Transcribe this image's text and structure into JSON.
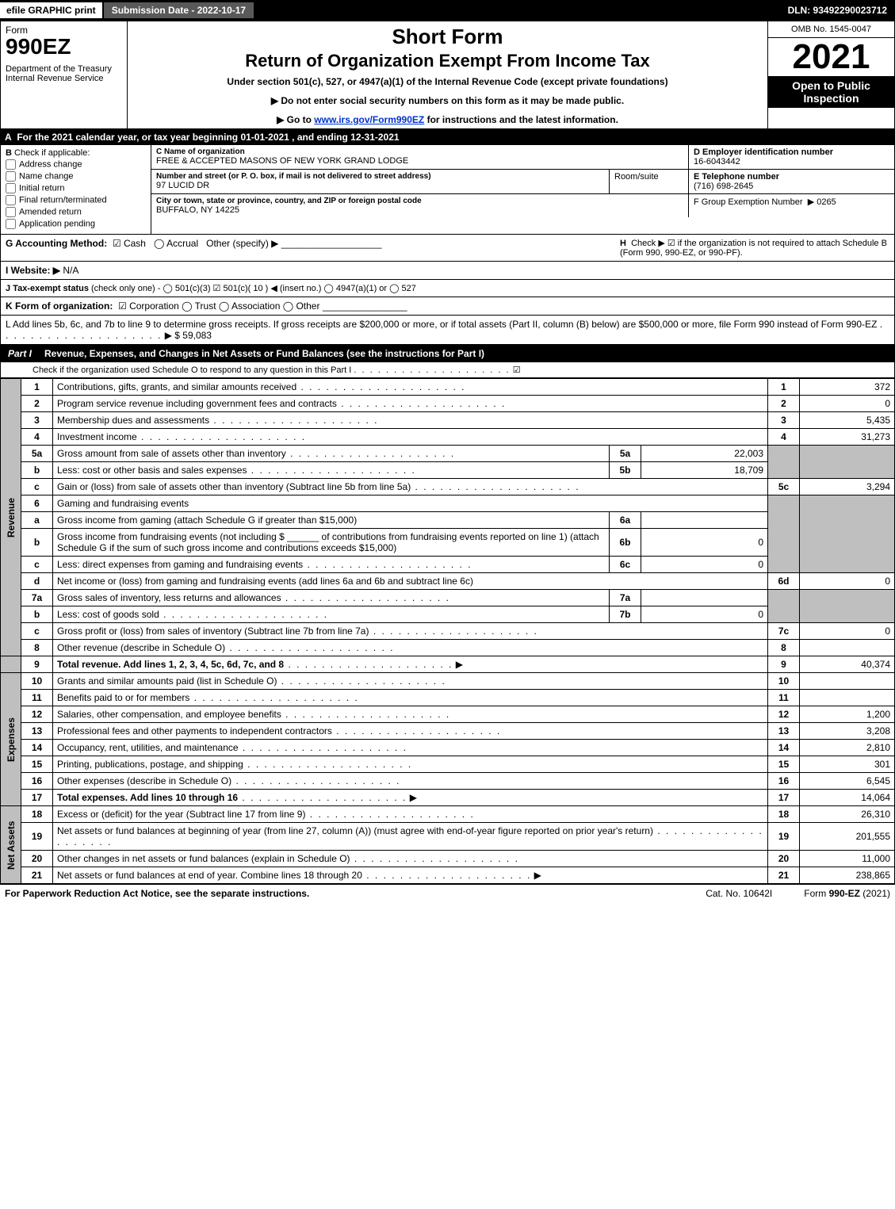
{
  "topbar": {
    "efile": "efile GRAPHIC print",
    "submission": "Submission Date - 2022-10-17",
    "dln": "DLN: 93492290023712"
  },
  "header": {
    "form_word": "Form",
    "form_no": "990EZ",
    "dept": "Department of the Treasury\nInternal Revenue Service",
    "short_form": "Short Form",
    "return_title": "Return of Organization Exempt From Income Tax",
    "under": "Under section 501(c), 527, or 4947(a)(1) of the Internal Revenue Code (except private foundations)",
    "bullet1": "▶ Do not enter social security numbers on this form as it may be made public.",
    "bullet2_pre": "▶ Go to ",
    "bullet2_link": "www.irs.gov/Form990EZ",
    "bullet2_post": " for instructions and the latest information.",
    "omb": "OMB No. 1545-0047",
    "year": "2021",
    "open": "Open to Public Inspection"
  },
  "rowA": {
    "letter": "A",
    "text": "For the 2021 calendar year, or tax year beginning 01-01-2021 , and ending 12-31-2021"
  },
  "B": {
    "title": "Check if applicable:",
    "opts": [
      "Address change",
      "Name change",
      "Initial return",
      "Final return/terminated",
      "Amended return",
      "Application pending"
    ]
  },
  "C": {
    "name_lbl": "C Name of organization",
    "name": "FREE & ACCEPTED MASONS OF NEW YORK GRAND LODGE",
    "addr_lbl": "Number and street (or P. O. box, if mail is not delivered to street address)",
    "addr": "97 LUCID DR",
    "room_lbl": "Room/suite",
    "city_lbl": "City or town, state or province, country, and ZIP or foreign postal code",
    "city": "BUFFALO, NY  14225"
  },
  "D": {
    "lbl": "D Employer identification number",
    "val": "16-6043442"
  },
  "E": {
    "lbl": "E Telephone number",
    "val": "(716) 698-2645"
  },
  "F": {
    "lbl": "F Group Exemption Number",
    "val": "▶ 0265"
  },
  "G": {
    "lbl": "G Accounting Method:",
    "cash": "Cash",
    "accrual": "Accrual",
    "other": "Other (specify) ▶"
  },
  "H": {
    "text": "Check ▶ ☑ if the organization is not required to attach Schedule B (Form 990, 990-EZ, or 990-PF).",
    "letter": "H"
  },
  "I": {
    "lbl": "I Website: ▶",
    "val": "N/A"
  },
  "J": {
    "lbl": "J Tax-exempt status",
    "text": "(check only one) - ◯ 501(c)(3) ☑ 501(c)( 10 ) ◀ (insert no.) ◯ 4947(a)(1) or ◯ 527"
  },
  "K": {
    "lbl": "K Form of organization:",
    "text": "☑ Corporation  ◯ Trust  ◯ Association  ◯ Other"
  },
  "L": {
    "text": "L Add lines 5b, 6c, and 7b to line 9 to determine gross receipts. If gross receipts are $200,000 or more, or if total assets (Part II, column (B) below) are $500,000 or more, file Form 990 instead of Form 990-EZ",
    "amt": "▶ $ 59,083"
  },
  "part1": {
    "label": "Part I",
    "title": "Revenue, Expenses, and Changes in Net Assets or Fund Balances (see the instructions for Part I)",
    "sub": "Check if the organization used Schedule O to respond to any question in this Part I",
    "check": "☑"
  },
  "side": {
    "rev": "Revenue",
    "exp": "Expenses",
    "na": "Net Assets"
  },
  "lines": {
    "l1": {
      "n": "1",
      "t": "Contributions, gifts, grants, and similar amounts received",
      "a": "372"
    },
    "l2": {
      "n": "2",
      "t": "Program service revenue including government fees and contracts",
      "a": "0"
    },
    "l3": {
      "n": "3",
      "t": "Membership dues and assessments",
      "a": "5,435"
    },
    "l4": {
      "n": "4",
      "t": "Investment income",
      "a": "31,273"
    },
    "l5a": {
      "n": "5a",
      "t": "Gross amount from sale of assets other than inventory",
      "il": "5a",
      "ia": "22,003"
    },
    "l5b": {
      "n": "b",
      "t": "Less: cost or other basis and sales expenses",
      "il": "5b",
      "ia": "18,709"
    },
    "l5c": {
      "n": "c",
      "t": "Gain or (loss) from sale of assets other than inventory (Subtract line 5b from line 5a)",
      "rl": "5c",
      "a": "3,294"
    },
    "l6": {
      "n": "6",
      "t": "Gaming and fundraising events"
    },
    "l6a": {
      "n": "a",
      "t": "Gross income from gaming (attach Schedule G if greater than $15,000)",
      "il": "6a",
      "ia": ""
    },
    "l6b": {
      "n": "b",
      "t1": "Gross income from fundraising events (not including $",
      "t2": "of contributions from fundraising events reported on line 1) (attach Schedule G if the sum of such gross income and contributions exceeds $15,000)",
      "il": "6b",
      "ia": "0"
    },
    "l6c": {
      "n": "c",
      "t": "Less: direct expenses from gaming and fundraising events",
      "il": "6c",
      "ia": "0"
    },
    "l6d": {
      "n": "d",
      "t": "Net income or (loss) from gaming and fundraising events (add lines 6a and 6b and subtract line 6c)",
      "rl": "6d",
      "a": "0"
    },
    "l7a": {
      "n": "7a",
      "t": "Gross sales of inventory, less returns and allowances",
      "il": "7a",
      "ia": ""
    },
    "l7b": {
      "n": "b",
      "t": "Less: cost of goods sold",
      "il": "7b",
      "ia": "0"
    },
    "l7c": {
      "n": "c",
      "t": "Gross profit or (loss) from sales of inventory (Subtract line 7b from line 7a)",
      "rl": "7c",
      "a": "0"
    },
    "l8": {
      "n": "8",
      "t": "Other revenue (describe in Schedule O)",
      "rl": "8",
      "a": ""
    },
    "l9": {
      "n": "9",
      "t": "Total revenue. Add lines 1, 2, 3, 4, 5c, 6d, 7c, and 8",
      "rl": "9",
      "a": "40,374"
    },
    "l10": {
      "n": "10",
      "t": "Grants and similar amounts paid (list in Schedule O)",
      "rl": "10",
      "a": ""
    },
    "l11": {
      "n": "11",
      "t": "Benefits paid to or for members",
      "rl": "11",
      "a": ""
    },
    "l12": {
      "n": "12",
      "t": "Salaries, other compensation, and employee benefits",
      "rl": "12",
      "a": "1,200"
    },
    "l13": {
      "n": "13",
      "t": "Professional fees and other payments to independent contractors",
      "rl": "13",
      "a": "3,208"
    },
    "l14": {
      "n": "14",
      "t": "Occupancy, rent, utilities, and maintenance",
      "rl": "14",
      "a": "2,810"
    },
    "l15": {
      "n": "15",
      "t": "Printing, publications, postage, and shipping",
      "rl": "15",
      "a": "301"
    },
    "l16": {
      "n": "16",
      "t": "Other expenses (describe in Schedule O)",
      "rl": "16",
      "a": "6,545"
    },
    "l17": {
      "n": "17",
      "t": "Total expenses. Add lines 10 through 16",
      "rl": "17",
      "a": "14,064"
    },
    "l18": {
      "n": "18",
      "t": "Excess or (deficit) for the year (Subtract line 17 from line 9)",
      "rl": "18",
      "a": "26,310"
    },
    "l19": {
      "n": "19",
      "t": "Net assets or fund balances at beginning of year (from line 27, column (A)) (must agree with end-of-year figure reported on prior year's return)",
      "rl": "19",
      "a": "201,555"
    },
    "l20": {
      "n": "20",
      "t": "Other changes in net assets or fund balances (explain in Schedule O)",
      "rl": "20",
      "a": "11,000"
    },
    "l21": {
      "n": "21",
      "t": "Net assets or fund balances at end of year. Combine lines 18 through 20",
      "rl": "21",
      "a": "238,865"
    }
  },
  "footer": {
    "left": "For Paperwork Reduction Act Notice, see the separate instructions.",
    "mid": "Cat. No. 10642I",
    "right": "Form 990-EZ (2021)"
  }
}
